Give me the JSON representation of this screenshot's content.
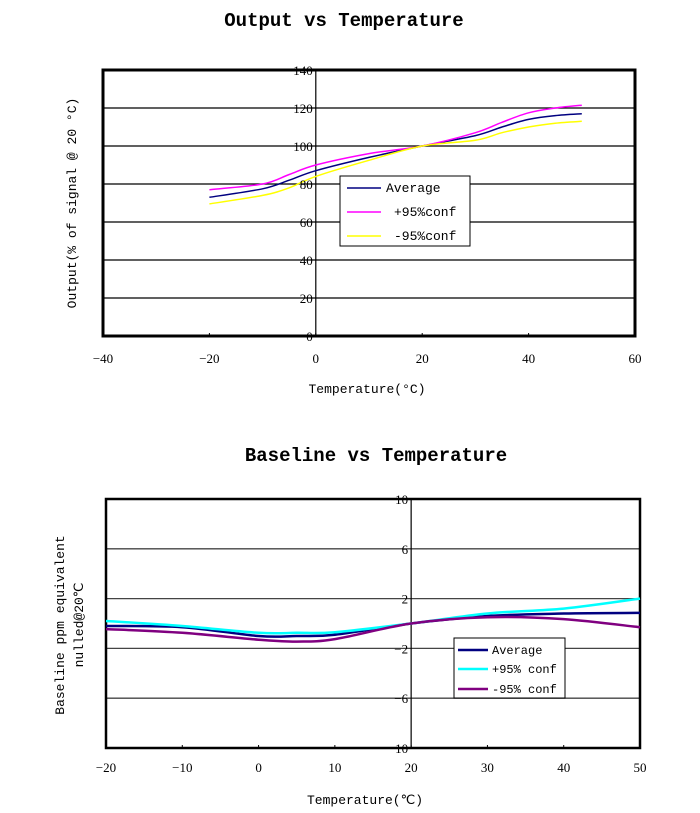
{
  "chart_data": [
    {
      "type": "line",
      "title": "Output vs Temperature",
      "xlabel": "Temperature(°C)",
      "ylabel": "Output(% of signal @ 20 °C)",
      "xlim": [
        -40,
        60
      ],
      "ylim": [
        0,
        140
      ],
      "xticks": [
        "-40",
        "-20",
        "0",
        "20",
        "40",
        "60"
      ],
      "yticks": [
        "140",
        "120",
        "100",
        "80",
        "60",
        "40",
        "20",
        "0"
      ],
      "grid": "horizontal",
      "legend_position": "center",
      "x": [
        -20,
        -10,
        -5,
        0,
        10,
        20,
        30,
        35,
        40,
        45,
        50
      ],
      "series": [
        {
          "name": "Average",
          "color": "#000080",
          "values": [
            73,
            77.5,
            82,
            87,
            94,
            100,
            105.5,
            110,
            114,
            116,
            117
          ]
        },
        {
          "name": "+95%conf",
          "color": "#ff00ff",
          "values": [
            77,
            80,
            85,
            90,
            96,
            100,
            107,
            112.5,
            117.5,
            120,
            121.5
          ]
        },
        {
          "name": "-95%conf",
          "color": "#ffff00",
          "values": [
            69.5,
            74,
            78,
            84,
            92.5,
            100,
            103,
            107,
            110,
            112,
            113
          ]
        }
      ]
    },
    {
      "type": "line",
      "title": "Baseline vs Temperature",
      "xlabel": "Temperature(℃)",
      "ylabel": "Baseline ppm equivalent",
      "ylabel2": "nulled@20℃",
      "xlim": [
        -20,
        50
      ],
      "ylim": [
        -10,
        10
      ],
      "xticks": [
        "-20",
        "-10",
        "0",
        "10",
        "20",
        "30",
        "40",
        "50"
      ],
      "yticks": [
        "10",
        "6",
        "2",
        "-2",
        "-6",
        "-10"
      ],
      "grid": "horizontal",
      "legend_position": "center-right",
      "x": [
        -20,
        -10,
        0,
        5,
        10,
        20,
        30,
        40,
        50
      ],
      "series": [
        {
          "name": "Average",
          "color": "#000080",
          "values": [
            -0.2,
            -0.3,
            -1.0,
            -1.0,
            -0.9,
            0,
            0.6,
            0.8,
            0.85
          ]
        },
        {
          "name": "+95% conf",
          "color": "#00ffff",
          "values": [
            0.2,
            -0.2,
            -0.75,
            -0.75,
            -0.7,
            0,
            0.8,
            1.2,
            2.0
          ]
        },
        {
          "name": "-95% conf",
          "color": "#800080",
          "values": [
            -0.45,
            -0.75,
            -1.3,
            -1.45,
            -1.25,
            0,
            0.5,
            0.35,
            -0.3
          ]
        }
      ]
    }
  ]
}
